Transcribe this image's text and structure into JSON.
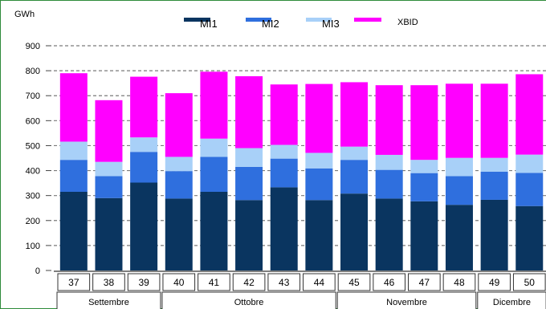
{
  "chart_data": {
    "type": "bar",
    "stacked": true,
    "unit_label": "GWh",
    "categories": [
      "37",
      "38",
      "39",
      "40",
      "41",
      "42",
      "43",
      "44",
      "45",
      "46",
      "47",
      "48",
      "49",
      "50"
    ],
    "month_groups": [
      {
        "label": "Settembre",
        "weeks": [
          "37",
          "38",
          "39"
        ]
      },
      {
        "label": "Ottobre",
        "weeks": [
          "40",
          "41",
          "42",
          "43",
          "44"
        ]
      },
      {
        "label": "Novembre",
        "weeks": [
          "45",
          "46",
          "47",
          "48"
        ]
      },
      {
        "label": "Dicembre",
        "weeks": [
          "49",
          "50"
        ]
      }
    ],
    "series": [
      {
        "name": "MI1",
        "color": "#0a3560",
        "values": [
          315,
          290,
          352,
          288,
          315,
          282,
          333,
          282,
          308,
          288,
          277,
          263,
          283,
          258
        ]
      },
      {
        "name": "MI2",
        "color": "#2f6fde",
        "values": [
          128,
          88,
          123,
          110,
          140,
          133,
          115,
          127,
          135,
          115,
          113,
          115,
          113,
          133
        ]
      },
      {
        "name": "MI3",
        "color": "#a8d0f8",
        "values": [
          73,
          57,
          58,
          57,
          73,
          75,
          55,
          62,
          53,
          60,
          53,
          73,
          55,
          73
        ]
      },
      {
        "name": "XBID",
        "color": "#ff00ff",
        "values": [
          274,
          247,
          243,
          255,
          268,
          288,
          242,
          276,
          258,
          279,
          299,
          297,
          297,
          322
        ]
      }
    ],
    "ylim": [
      0,
      900
    ],
    "yticks": [
      0,
      100,
      200,
      300,
      400,
      500,
      600,
      700,
      800,
      900
    ],
    "grid": "dashed horizontal",
    "legend_position": "top"
  }
}
